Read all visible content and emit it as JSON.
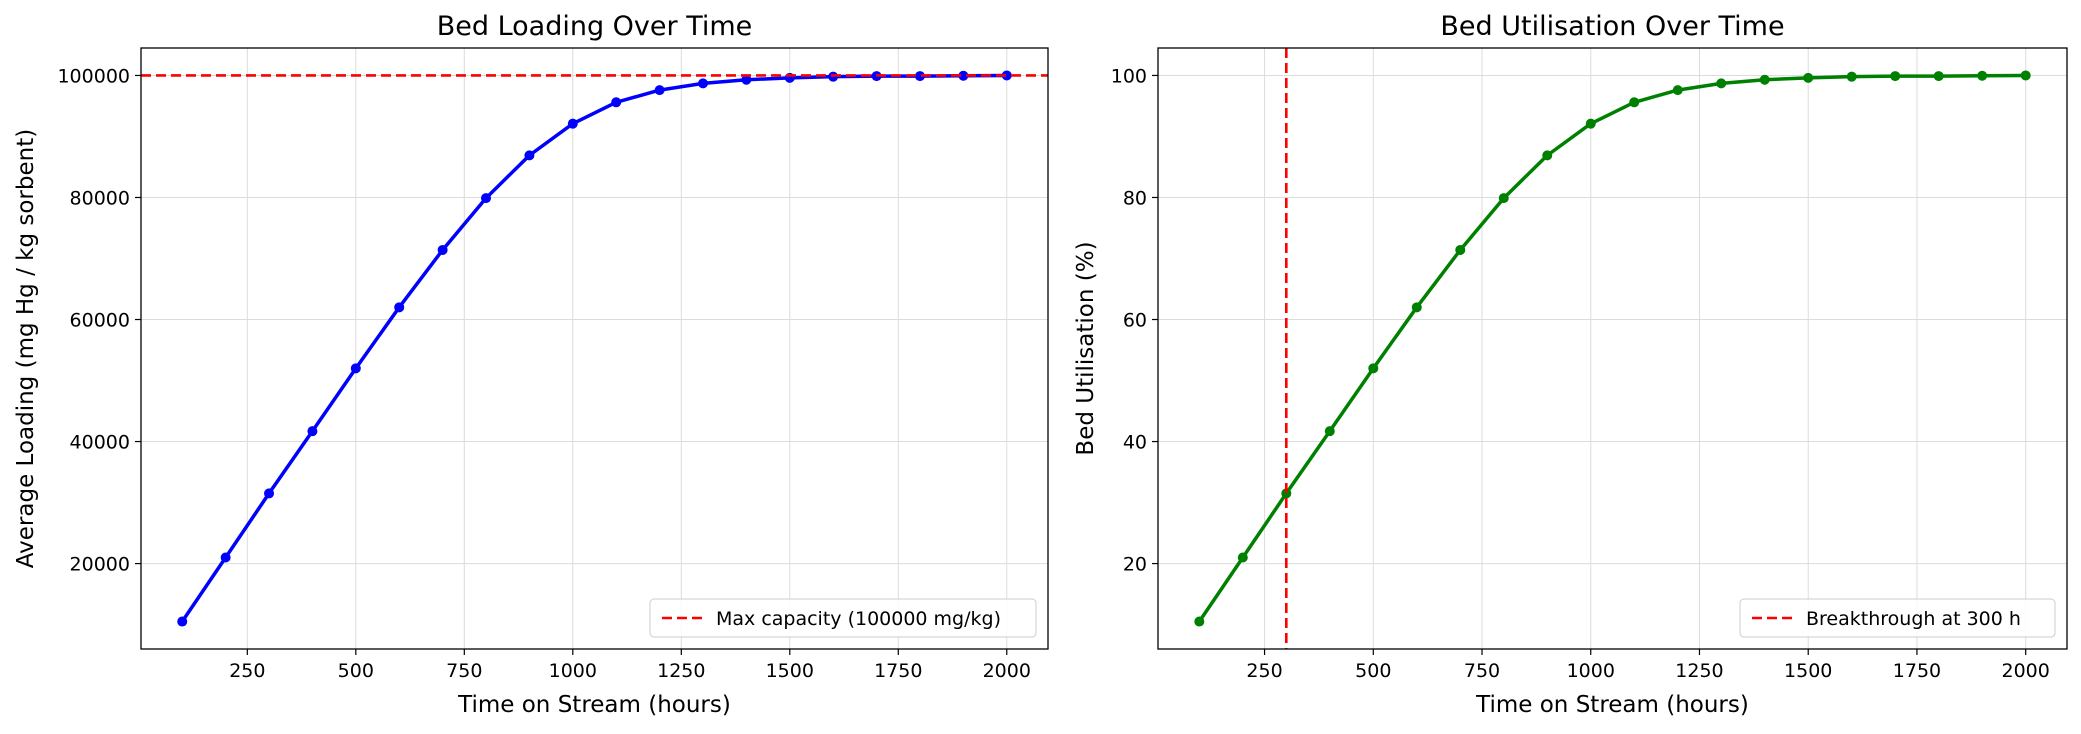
{
  "chart_data": [
    {
      "type": "line",
      "title": "Bed Loading Over Time",
      "xlabel": "Time on Stream (hours)",
      "ylabel": "Average Loading (mg Hg / kg sorbent)",
      "xlim": [
        5,
        2095
      ],
      "ylim": [
        6000,
        104500
      ],
      "xticks": [
        250,
        500,
        750,
        1000,
        1250,
        1500,
        1750,
        2000
      ],
      "yticks": [
        20000,
        40000,
        60000,
        80000,
        100000
      ],
      "grid": true,
      "legend_position": "lower-right",
      "series": [
        {
          "color": "#0000ff",
          "x": [
            100,
            200,
            300,
            400,
            500,
            600,
            700,
            800,
            900,
            1000,
            1100,
            1200,
            1300,
            1400,
            1500,
            1600,
            1700,
            1800,
            1900,
            2000
          ],
          "y": [
            10500,
            21000,
            31500,
            41700,
            52000,
            62000,
            71400,
            79900,
            86900,
            92100,
            95600,
            97600,
            98700,
            99300,
            99600,
            99800,
            99900,
            99900,
            99950,
            100000
          ]
        }
      ],
      "reference_lines": [
        {
          "orientation": "horizontal",
          "value": 100000,
          "color": "#ff0000",
          "style": "dashed",
          "label": "Max capacity (100000 mg/kg)"
        }
      ]
    },
    {
      "type": "line",
      "title": "Bed Utilisation Over Time",
      "xlabel": "Time on Stream (hours)",
      "ylabel": "Bed Utilisation (%)",
      "xlim": [
        5,
        2095
      ],
      "ylim": [
        6,
        104.5
      ],
      "xticks": [
        250,
        500,
        750,
        1000,
        1250,
        1500,
        1750,
        2000
      ],
      "yticks": [
        20,
        40,
        60,
        80,
        100
      ],
      "grid": true,
      "legend_position": "lower-right",
      "series": [
        {
          "color": "#008000",
          "x": [
            100,
            200,
            300,
            400,
            500,
            600,
            700,
            800,
            900,
            1000,
            1100,
            1200,
            1300,
            1400,
            1500,
            1600,
            1700,
            1800,
            1900,
            2000
          ],
          "y": [
            10.5,
            21.0,
            31.5,
            41.7,
            52.0,
            62.0,
            71.4,
            79.9,
            86.9,
            92.1,
            95.6,
            97.6,
            98.7,
            99.3,
            99.6,
            99.8,
            99.9,
            99.9,
            99.95,
            100.0
          ]
        }
      ],
      "reference_lines": [
        {
          "orientation": "vertical",
          "value": 300,
          "color": "#ff0000",
          "style": "dashed",
          "label": "Breakthrough at 300 h"
        }
      ]
    }
  ]
}
